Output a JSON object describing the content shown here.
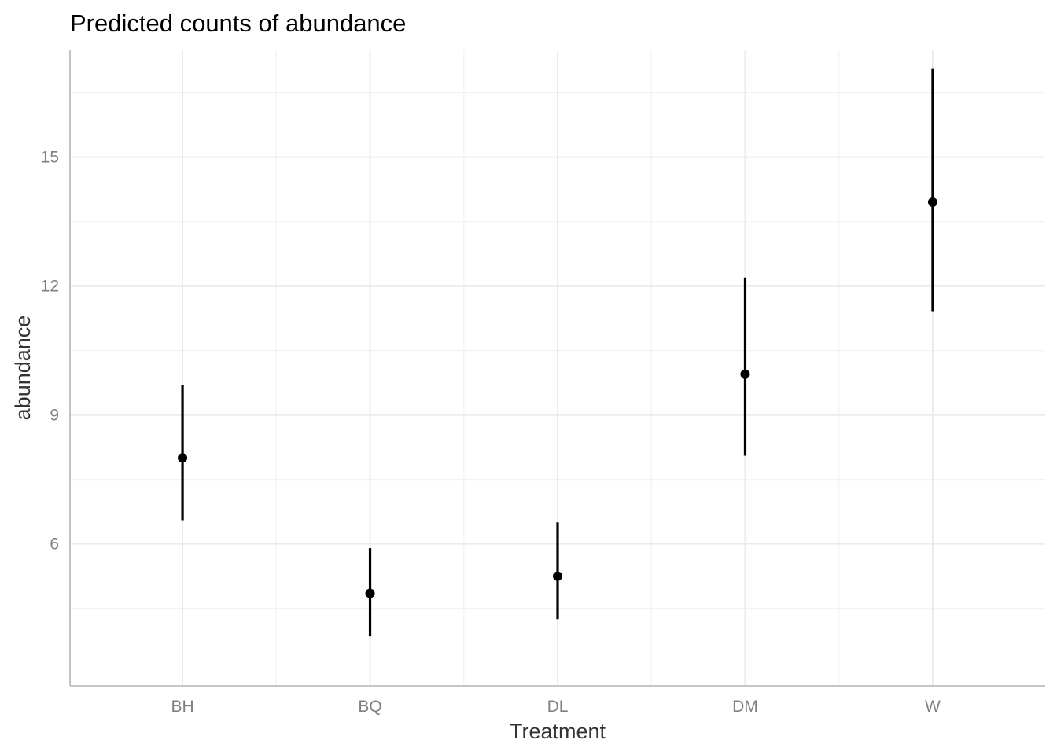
{
  "chart_data": {
    "type": "pointrange",
    "title": "Predicted counts of abundance",
    "xlabel": "Treatment",
    "ylabel": "abundance",
    "categories": [
      "BH",
      "BQ",
      "DL",
      "DM",
      "W"
    ],
    "series": [
      {
        "name": "abundance",
        "values": [
          8.0,
          4.85,
          5.25,
          9.95,
          13.95
        ],
        "lower": [
          6.55,
          3.85,
          4.25,
          8.05,
          11.4
        ],
        "upper": [
          9.7,
          5.9,
          6.5,
          12.2,
          17.05
        ]
      }
    ],
    "yticks": [
      6,
      9,
      12,
      15
    ],
    "ytick_labels": [
      "6",
      "9",
      "12",
      "15"
    ],
    "ylim": [
      2.7,
      17.5
    ],
    "grid": true,
    "legend": "none",
    "colors": {
      "point": "#000000",
      "title": "#000000",
      "axis_title": "#333333",
      "tick_label": "#808080",
      "grid": "#ebebeb"
    }
  }
}
